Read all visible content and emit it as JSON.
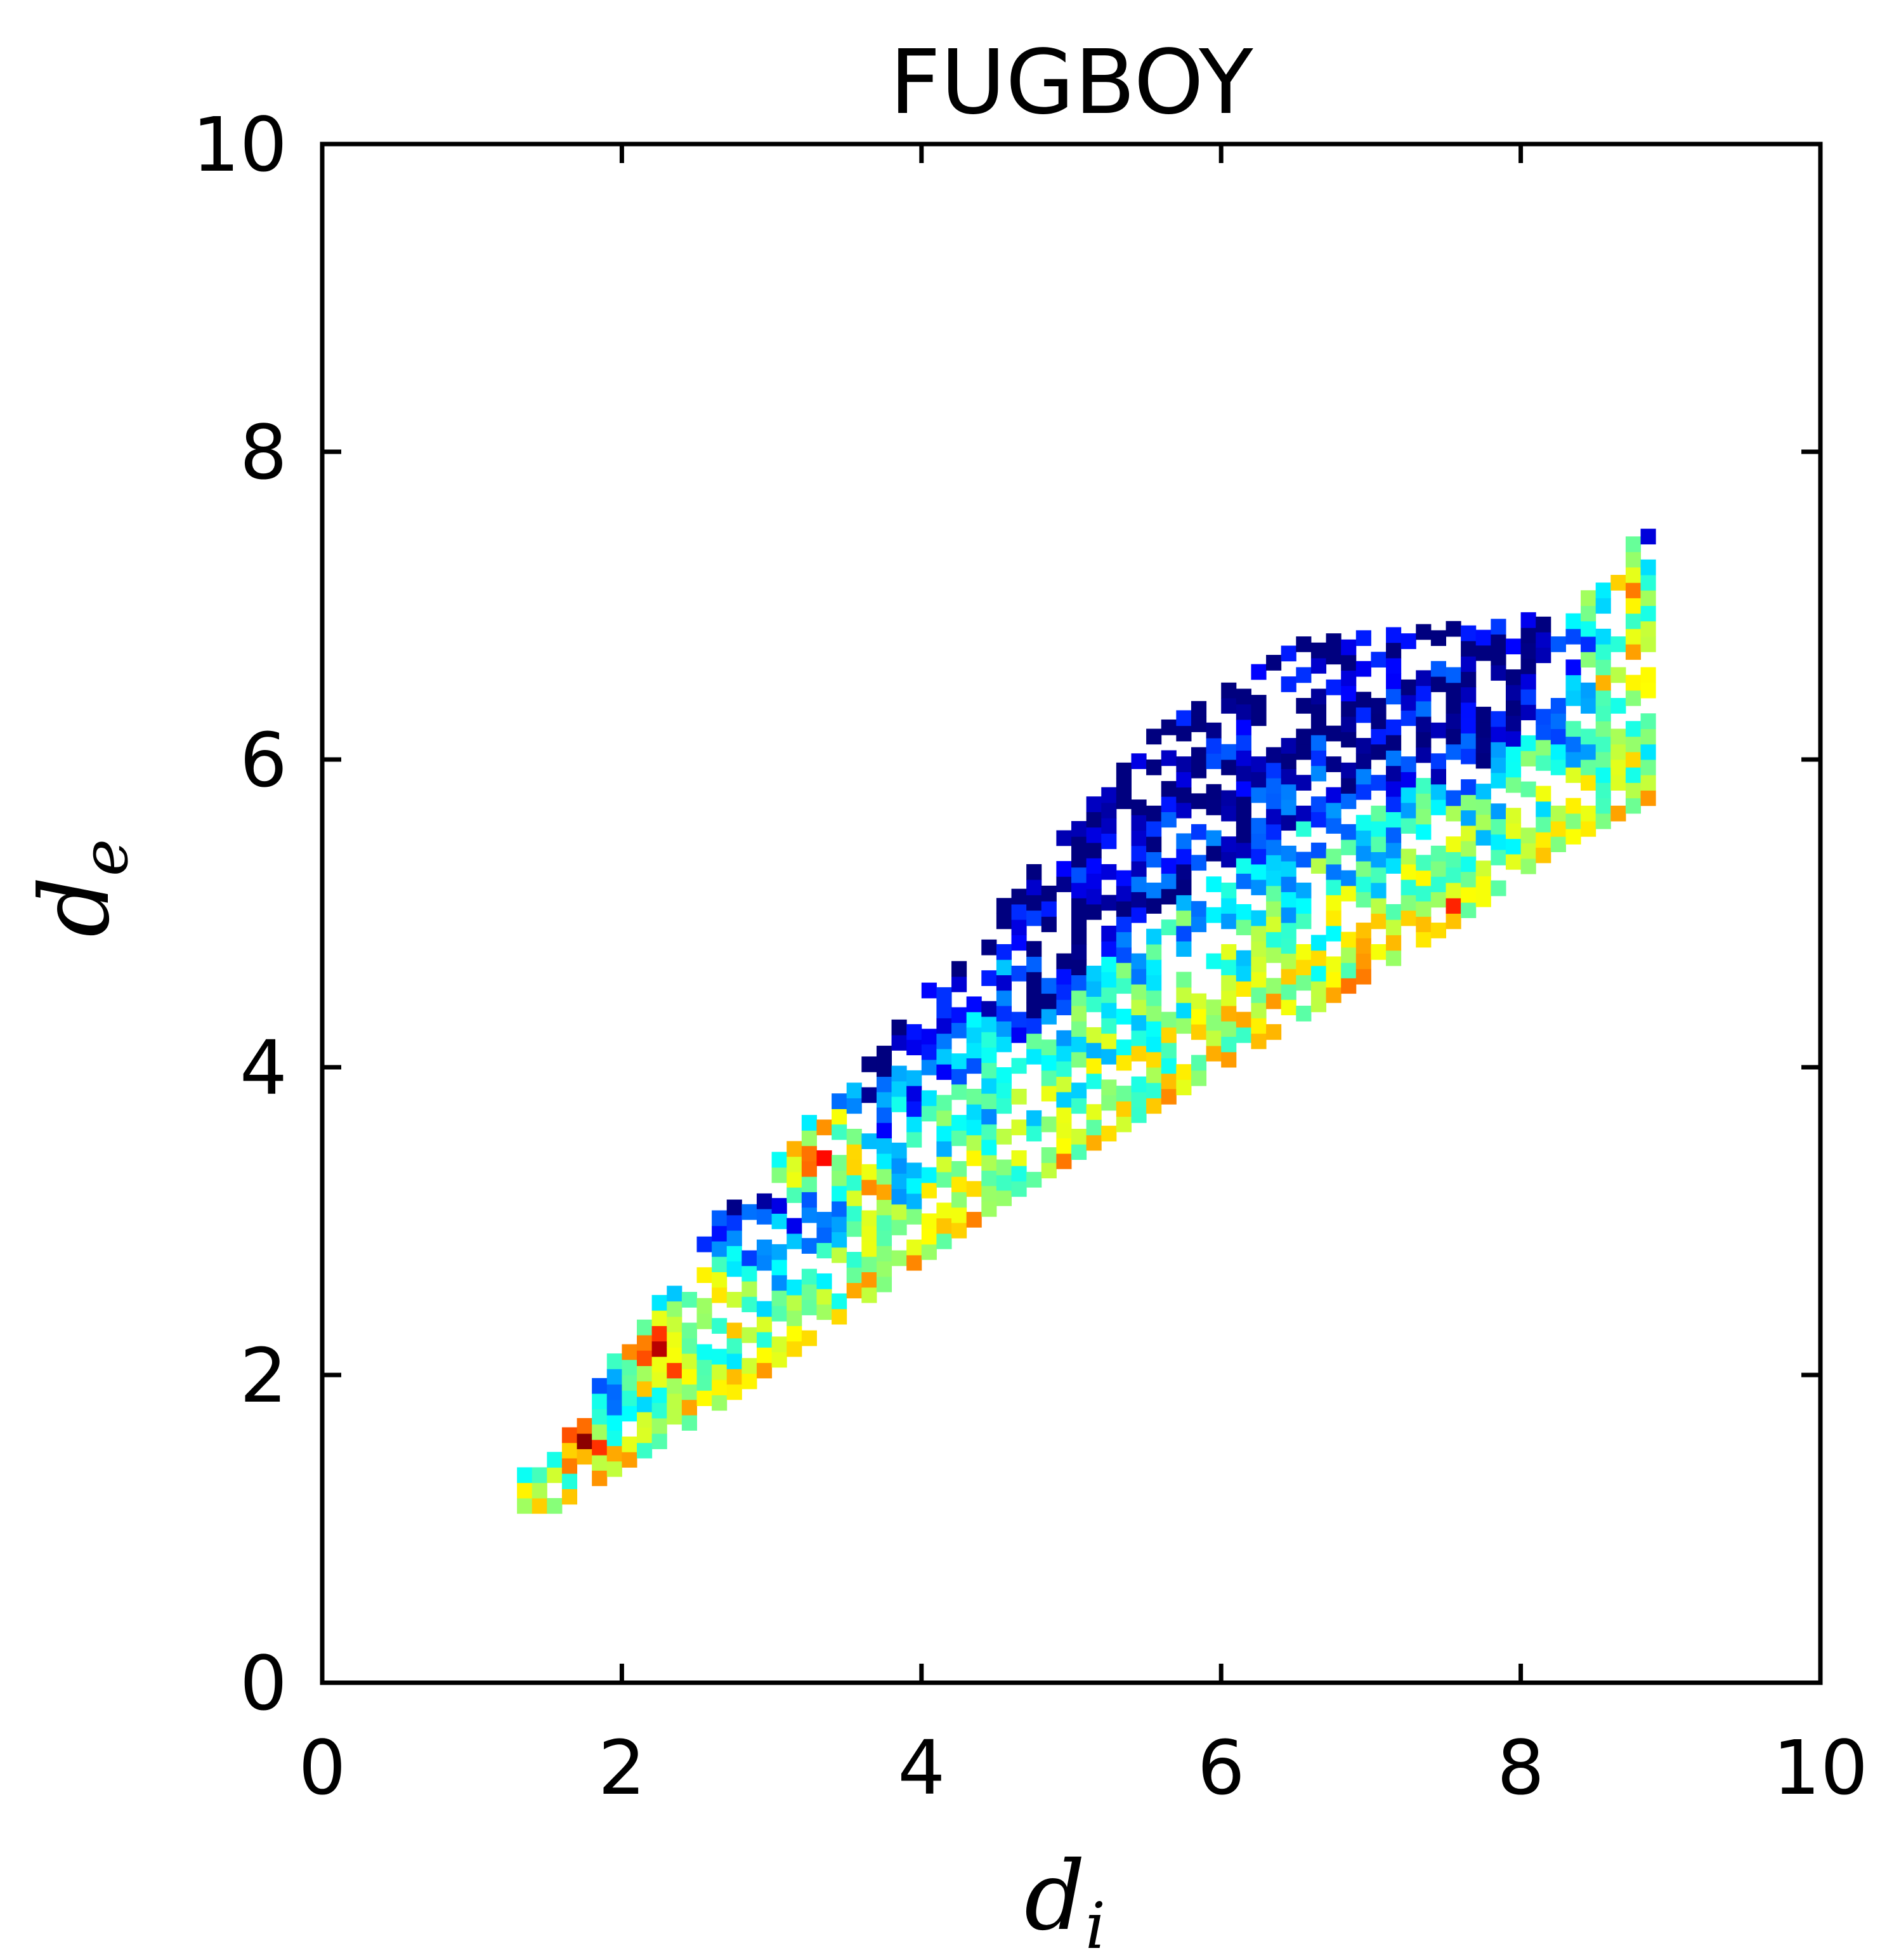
{
  "chart_data": {
    "type": "heatmap",
    "title": "FUGBOY",
    "xlabel": {
      "base": "d",
      "sub": "i"
    },
    "ylabel": {
      "base": "d",
      "sub": "e"
    },
    "xlim": [
      0,
      10
    ],
    "ylim": [
      0,
      10
    ],
    "xticks": [
      "0",
      "2",
      "4",
      "6",
      "8",
      "10"
    ],
    "yticks": [
      "0",
      "2",
      "4",
      "6",
      "8",
      "10"
    ],
    "grid": false,
    "colormap": "jet",
    "colormap_stops": [
      "#00007f",
      "#0000ff",
      "#0080ff",
      "#00ffff",
      "#80ff80",
      "#ffff00",
      "#ff8000",
      "#ff0000",
      "#7f0000"
    ],
    "bin_size": 0.1,
    "region": {
      "description_points_lower": [
        [
          1.5,
          1.1
        ],
        [
          2.5,
          1.7
        ],
        [
          3.5,
          2.4
        ],
        [
          4.5,
          3.1
        ],
        [
          5.5,
          3.7
        ],
        [
          6.5,
          4.3
        ],
        [
          7.5,
          4.9
        ],
        [
          8.2,
          5.4
        ],
        [
          8.8,
          5.7
        ]
      ],
      "description_points_upper": [
        [
          1.5,
          1.5
        ],
        [
          2.5,
          2.9
        ],
        [
          3.5,
          3.9
        ],
        [
          4.5,
          5.0
        ],
        [
          5.5,
          6.1
        ],
        [
          6.5,
          6.7
        ],
        [
          7.5,
          6.8
        ],
        [
          8.3,
          6.9
        ],
        [
          8.8,
          7.5
        ]
      ]
    },
    "hotspots": [
      {
        "x": 2.2,
        "y": 2.1,
        "value": 0.9
      },
      {
        "x": 2.6,
        "y": 2.4,
        "value": 0.75
      },
      {
        "x": 3.3,
        "y": 3.4,
        "value": 0.8
      },
      {
        "x": 3.6,
        "y": 3.2,
        "value": 0.7
      },
      {
        "x": 1.7,
        "y": 1.5,
        "value": 0.85
      },
      {
        "x": 7.5,
        "y": 4.9,
        "value": 0.8
      },
      {
        "x": 8.7,
        "y": 6.5,
        "value": 0.85
      },
      {
        "x": 8.7,
        "y": 7.0,
        "value": 0.75
      }
    ]
  }
}
